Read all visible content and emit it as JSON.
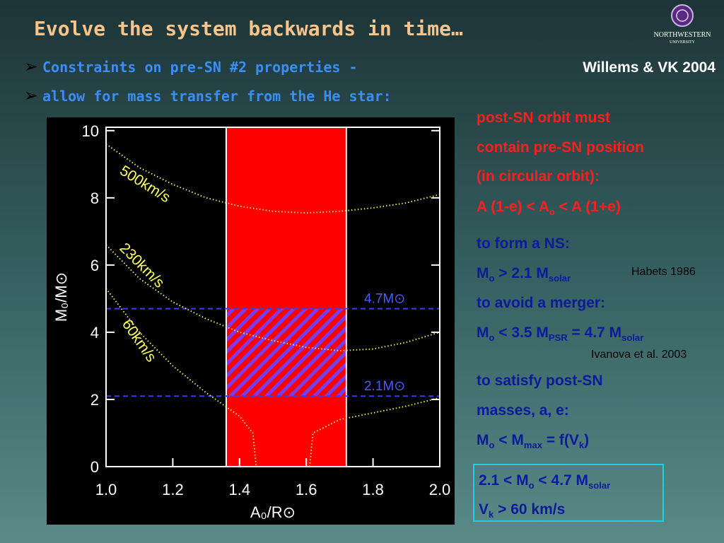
{
  "header": {
    "title": "Evolve the system backwards in time…",
    "bullets": [
      "Constraints on pre-SN #2 properties -",
      "allow for mass transfer from the He star:"
    ],
    "citation": "Willems & VK 2004",
    "logo": [
      "NORTHWESTERN",
      "UNIVERSITY"
    ]
  },
  "notes": {
    "orbit": [
      [
        "post-SN orbit must"
      ],
      [
        "contain pre-SN position"
      ],
      [
        "(in circular orbit):"
      ],
      [
        "A (1-e) < A",
        "o",
        " < A (1+e)"
      ]
    ],
    "ns": [
      [
        "to form a NS:"
      ],
      [
        "M",
        "o",
        " > 2.1 M",
        "solar"
      ],
      [
        "to avoid a merger:"
      ],
      [
        "M",
        "o",
        " < 3.5 M",
        "PSR",
        " = 4.7 M",
        "solar"
      ]
    ],
    "post": [
      [
        "to satisfy post-SN"
      ],
      [
        "masses, a, e:"
      ],
      [
        "M",
        "o",
        " < M",
        "max",
        " = f(V",
        "k",
        ")"
      ]
    ],
    "refs": [
      "Habets 1986",
      "Ivanova et al. 2003"
    ],
    "result": [
      [
        "2.1 < M",
        "o",
        " < 4.7 M",
        "solar"
      ],
      [
        "V",
        "k",
        "  > 60 km/s"
      ]
    ]
  },
  "chart_data": {
    "type": "line",
    "x_label": "A₀/R⊙",
    "y_label": "M₀/M⊙",
    "xlim": [
      1.0,
      2.0
    ],
    "ylim": [
      0,
      10.1
    ],
    "xticks": [
      {
        "value": 1.0,
        "label": "1.0"
      },
      1.2,
      1.4,
      1.6,
      1.8,
      {
        "value": 2.0,
        "label": "2.0"
      }
    ],
    "yticks": [
      0,
      2,
      4,
      6,
      8,
      10
    ],
    "shaded_region": {
      "xlim": [
        1.36,
        1.72
      ],
      "color": "#ff0000"
    },
    "reference_lines": [
      {
        "value": 4.7,
        "label": "4.7M⊙"
      },
      {
        "value": 2.1,
        "label": "2.1M⊙"
      }
    ],
    "reference_color": "#3c3cf0",
    "series": [
      {
        "name": "500km/s",
        "color": "#e6e65a",
        "x": [
          1.0,
          1.1,
          1.2,
          1.3,
          1.4,
          1.5,
          1.6,
          1.7,
          1.8,
          1.9,
          2.0
        ],
        "values": [
          9.6,
          8.9,
          8.4,
          8.0,
          7.75,
          7.6,
          7.55,
          7.6,
          7.7,
          7.85,
          8.1
        ]
      },
      {
        "name": "230km/s",
        "color": "#e6e65a",
        "x": [
          1.0,
          1.1,
          1.2,
          1.3,
          1.4,
          1.5,
          1.6,
          1.7,
          1.8,
          1.9,
          2.0
        ],
        "values": [
          6.6,
          5.6,
          4.9,
          4.4,
          4.0,
          3.75,
          3.55,
          3.45,
          3.5,
          3.7,
          4.0
        ]
      },
      {
        "name": "60km/s",
        "color": "#e6e65a",
        "x": [
          1.0,
          1.1,
          1.2,
          1.3,
          1.4,
          1.44,
          1.45,
          null,
          1.61,
          1.62,
          1.7,
          1.8,
          1.9,
          2.0
        ],
        "values": [
          5.3,
          4.0,
          3.0,
          2.2,
          1.5,
          1.0,
          0,
          null,
          0,
          1.0,
          1.4,
          1.6,
          1.8,
          2.05
        ]
      }
    ]
  }
}
